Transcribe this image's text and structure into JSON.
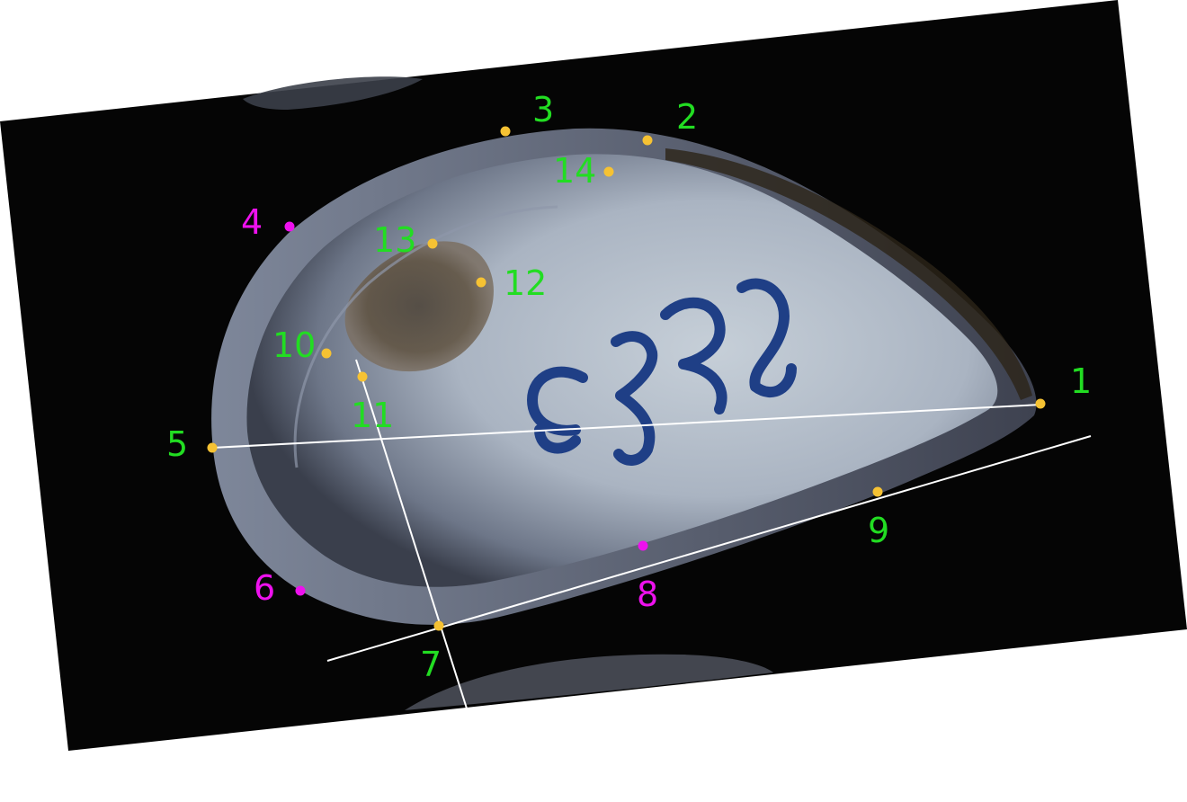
{
  "colors": {
    "label_fixed": "#22dd22",
    "label_semilandmark": "#ee11ee",
    "dot_fixed": "#f6c233",
    "dot_semilandmark": "#ee11ee",
    "guide_line": "#ffffff",
    "background_scan": "#050505",
    "page": "#ffffff"
  },
  "landmarks": [
    {
      "id": "lm-1",
      "label": "1",
      "kind": "fixed"
    },
    {
      "id": "lm-2",
      "label": "2",
      "kind": "fixed"
    },
    {
      "id": "lm-3",
      "label": "3",
      "kind": "fixed"
    },
    {
      "id": "lm-4",
      "label": "4",
      "kind": "semilandmark"
    },
    {
      "id": "lm-5",
      "label": "5",
      "kind": "fixed"
    },
    {
      "id": "lm-6",
      "label": "6",
      "kind": "semilandmark"
    },
    {
      "id": "lm-7",
      "label": "7",
      "kind": "fixed"
    },
    {
      "id": "lm-8",
      "label": "8",
      "kind": "semilandmark"
    },
    {
      "id": "lm-9",
      "label": "9",
      "kind": "fixed"
    },
    {
      "id": "lm-10",
      "label": "10",
      "kind": "fixed"
    },
    {
      "id": "lm-11",
      "label": "11",
      "kind": "fixed"
    },
    {
      "id": "lm-12",
      "label": "12",
      "kind": "fixed"
    },
    {
      "id": "lm-13",
      "label": "13",
      "kind": "fixed"
    },
    {
      "id": "lm-14",
      "label": "14",
      "kind": "fixed"
    }
  ],
  "specimen_handwriting": "E23"
}
